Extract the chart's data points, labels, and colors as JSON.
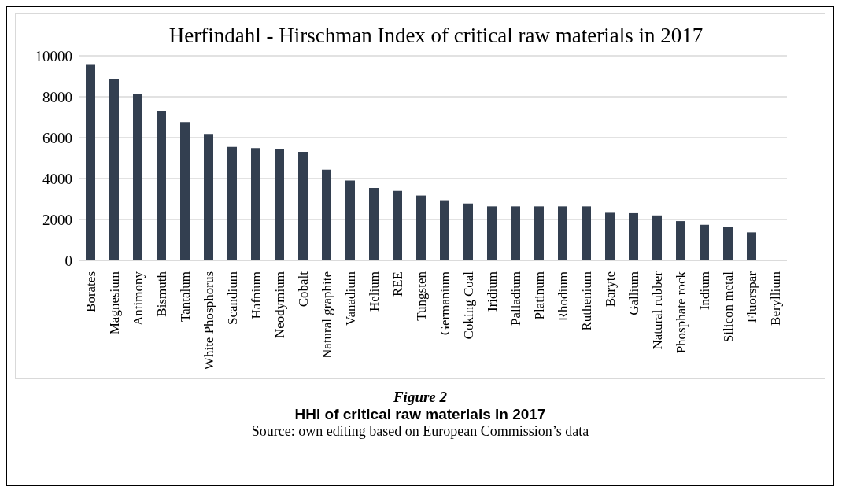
{
  "chart_data": {
    "type": "bar",
    "title": "Herfindahl - Hirschman Index of critical raw materials in 2017",
    "categories": [
      "Borates",
      "Magnesium",
      "Antimony",
      "Bismuth",
      "Tantalum",
      "White Phosphorus",
      "Scandium",
      "Hafnium",
      "Neodymium",
      "Cobalt",
      "Natural graphite",
      "Vanadium",
      "Helium",
      "REE",
      "Tungsten",
      "Germanium",
      "Coking Coal",
      "Iridium",
      "Palladium",
      "Platinum",
      "Rhodium",
      "Ruthenium",
      "Baryte",
      "Gallium",
      "Natural rubber",
      "Phosphate rock",
      "Indium",
      "Silicon metal",
      "Fluorspar",
      "Beryllium"
    ],
    "values": [
      9600,
      8860,
      8150,
      7310,
      6760,
      6180,
      5550,
      5490,
      5450,
      5310,
      4430,
      3900,
      3540,
      3390,
      3170,
      2940,
      2780,
      2640,
      2640,
      2640,
      2640,
      2640,
      2330,
      2310,
      2200,
      1920,
      1740,
      1650,
      1370,
      null
    ],
    "color": "#333f50",
    "ylim": [
      0,
      10000
    ],
    "yticks": [
      0,
      2000,
      4000,
      6000,
      8000,
      10000
    ],
    "grid": "y",
    "annotations": [
      "Figure 2",
      "HHI of critical raw materials in 2017",
      "Source: own editing based on European Commission’s data"
    ]
  }
}
